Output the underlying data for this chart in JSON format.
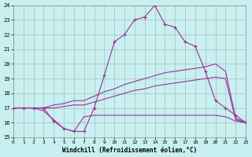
{
  "xlabel": "Windchill (Refroidissement éolien,°C)",
  "background_color": "#c8f0f0",
  "grid_color": "#aaaaaa",
  "line_color": "#993399",
  "hours": [
    0,
    1,
    2,
    3,
    4,
    5,
    6,
    7,
    8,
    9,
    10,
    11,
    12,
    13,
    14,
    15,
    16,
    17,
    18,
    19,
    20,
    21,
    22,
    23
  ],
  "line1": [
    17.0,
    17.0,
    17.0,
    17.0,
    16.1,
    15.6,
    15.4,
    15.4,
    17.0,
    19.2,
    21.5,
    22.0,
    23.0,
    23.2,
    24.0,
    22.7,
    22.5,
    21.5,
    21.2,
    19.5,
    17.5,
    17.0,
    16.5,
    16.0
  ],
  "line2": [
    17.0,
    17.0,
    17.0,
    17.0,
    17.2,
    17.3,
    17.5,
    17.5,
    17.8,
    18.1,
    18.3,
    18.6,
    18.8,
    19.0,
    19.2,
    19.4,
    19.5,
    19.6,
    19.7,
    19.8,
    20.0,
    19.5,
    16.3,
    16.0
  ],
  "line3": [
    17.0,
    17.0,
    17.0,
    17.0,
    17.0,
    17.1,
    17.2,
    17.2,
    17.4,
    17.6,
    17.8,
    18.0,
    18.2,
    18.3,
    18.5,
    18.6,
    18.7,
    18.8,
    18.9,
    19.0,
    19.1,
    19.0,
    16.2,
    16.0
  ],
  "line4": [
    17.0,
    17.0,
    17.0,
    16.8,
    16.2,
    15.6,
    15.4,
    16.4,
    16.5,
    16.5,
    16.5,
    16.5,
    16.5,
    16.5,
    16.5,
    16.5,
    16.5,
    16.5,
    16.5,
    16.5,
    16.5,
    16.4,
    16.1,
    16.0
  ],
  "ylim": [
    15,
    24
  ],
  "xlim": [
    0,
    23
  ],
  "yticks": [
    15,
    16,
    17,
    18,
    19,
    20,
    21,
    22,
    23,
    24
  ],
  "xticks": [
    0,
    1,
    2,
    3,
    4,
    5,
    6,
    7,
    8,
    9,
    10,
    11,
    12,
    13,
    14,
    15,
    16,
    17,
    18,
    19,
    20,
    21,
    22,
    23
  ]
}
